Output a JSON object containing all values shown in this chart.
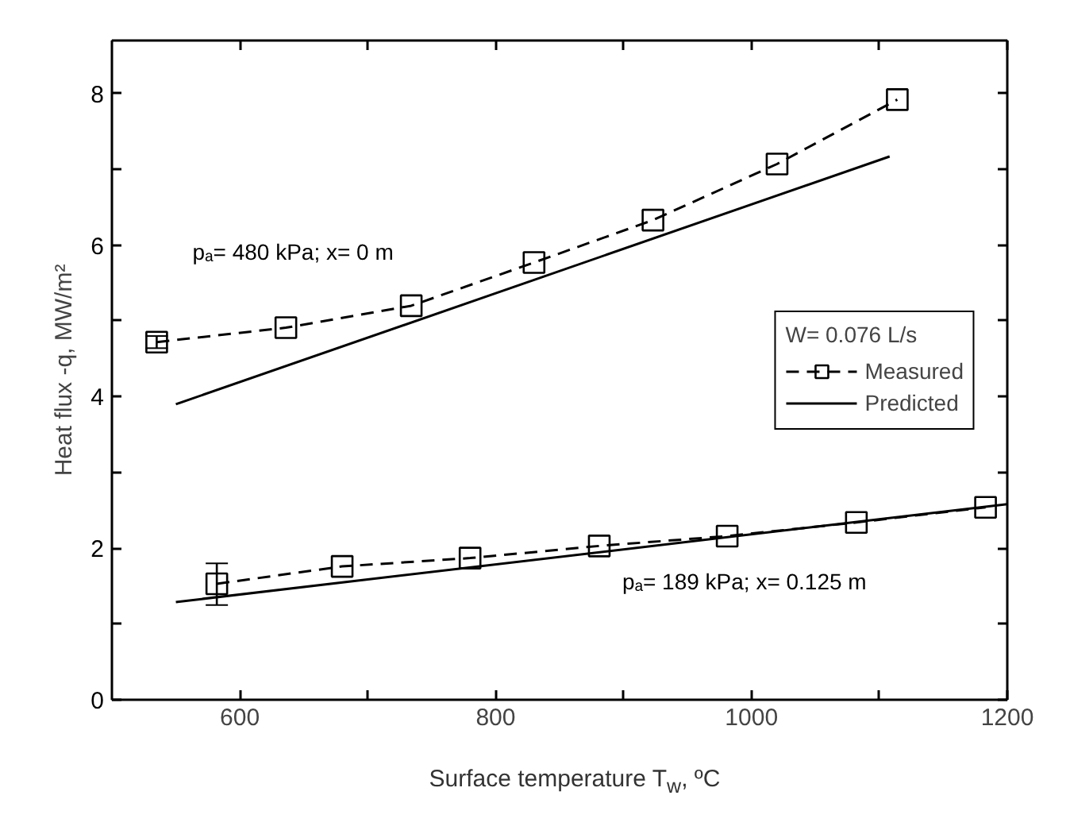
{
  "chart_data": {
    "type": "line",
    "xlabel": "Surface temperature T$_{w}$, ºC",
    "ylabel": "Heat flux -q, MW/m²",
    "legend_title": "W= 0.076 L/s",
    "legend": "right",
    "grid": false,
    "xlim": [
      500,
      1200
    ],
    "ylim": [
      0,
      8.7
    ],
    "xticks": [
      600,
      {
        "value": 700,
        "label": null
      },
      800,
      {
        "value": 900,
        "label": null
      },
      1000,
      {
        "value": 1100,
        "label": null
      },
      1200
    ],
    "yticks": [
      0,
      {
        "value": 1,
        "label": null
      },
      2,
      {
        "value": 3,
        "label": null
      },
      4,
      {
        "value": 5,
        "label": null
      },
      6,
      {
        "value": 7,
        "label": null
      },
      8
    ],
    "series": [
      {
        "name": "Measured",
        "color": "#000000",
        "marker": "square",
        "line_style": "dashed",
        "x": [
          535,
          636,
          734,
          830,
          923,
          1020,
          1114
        ],
        "values": [
          4.72,
          4.91,
          5.2,
          5.77,
          6.33,
          7.07,
          7.92
        ],
        "errors": [
          [
            4.64,
            4.8
          ],
          null,
          null,
          null,
          null,
          null,
          null
        ]
      },
      {
        "name": "Predicted",
        "color": "#000000",
        "marker": "none",
        "line_style": "solid",
        "x": [
          550,
          1108
        ],
        "values": [
          3.9,
          7.17
        ]
      },
      {
        "color": "#000000",
        "marker": "square",
        "line_style": "dashed",
        "x": [
          582,
          680,
          780,
          881,
          981,
          1082,
          1183
        ],
        "values": [
          1.53,
          1.76,
          1.87,
          2.03,
          2.16,
          2.34,
          2.54
        ],
        "errors": [
          [
            1.25,
            1.8
          ],
          null,
          null,
          null,
          null,
          null,
          null
        ]
      },
      {
        "color": "#000000",
        "marker": "none",
        "line_style": "solid",
        "x": [
          550,
          1200
        ],
        "values": [
          1.29,
          2.58
        ]
      }
    ],
    "annotations": [
      "pₐ=  480 kPa; x= 0 m",
      "pₐ=  189 kPa; x= 0.125 m"
    ]
  }
}
